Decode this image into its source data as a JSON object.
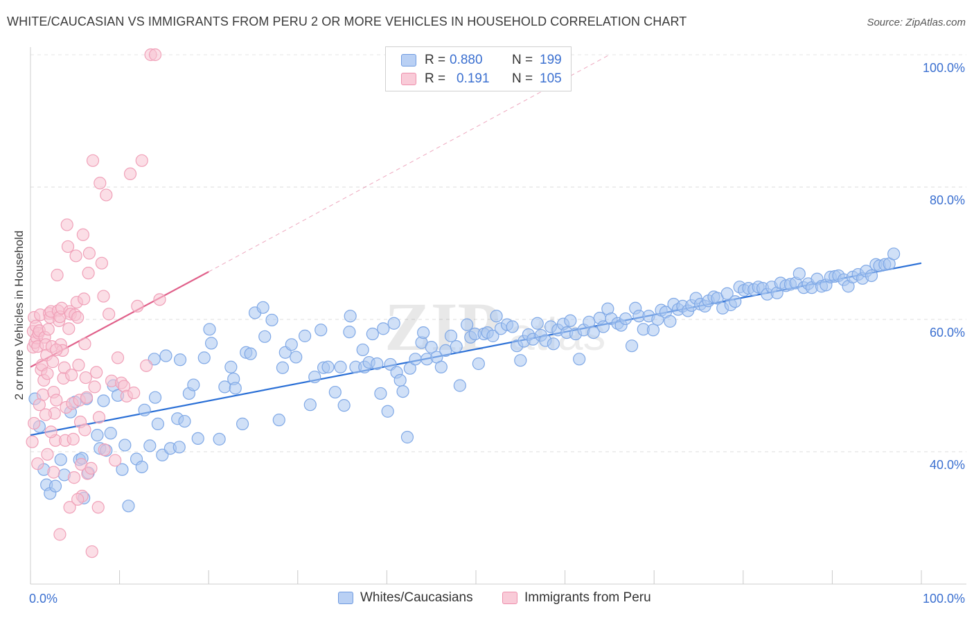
{
  "title": "WHITE/CAUCASIAN VS IMMIGRANTS FROM PERU 2 OR MORE VEHICLES IN HOUSEHOLD CORRELATION CHART",
  "source": "Source: ZipAtlas.com",
  "watermark": {
    "zip": "ZIP",
    "atlas": "atlas"
  },
  "legend": {
    "r_label": "R =",
    "n_label": "N =",
    "entries": [
      {
        "r": "0.880",
        "n": "199"
      },
      {
        "r": "0.191",
        "n": "105"
      }
    ]
  },
  "chart_data": {
    "type": "scatter",
    "title": "WHITE/CAUCASIAN VS IMMIGRANTS FROM PERU 2 OR MORE VEHICLES IN HOUSEHOLD CORRELATION CHART",
    "xlabel": "",
    "ylabel": "2 or more Vehicles in Household",
    "xlim": [
      0,
      100
    ],
    "ylim": [
      20,
      100
    ],
    "x_tick_labels": [
      "0.0%",
      "100.0%"
    ],
    "y_ticks": [
      {
        "value": 40,
        "label": "40.0%"
      },
      {
        "value": 60,
        "label": "60.0%"
      },
      {
        "value": 80,
        "label": "80.0%"
      },
      {
        "value": 100,
        "label": "100.0%"
      }
    ],
    "series": [
      {
        "name": "Whites/Caucasians",
        "color": "#7fa8e6",
        "fill": "#aac6f0",
        "line_color": "#2a6fd6",
        "trend": {
          "x0": 0,
          "y0": 42.5,
          "x1": 100,
          "y1": 68.5
        },
        "points": [
          [
            0.5,
            48
          ],
          [
            1.0,
            43.8
          ],
          [
            1.5,
            37.3
          ],
          [
            1.8,
            35
          ],
          [
            2.2,
            33.7
          ],
          [
            2.8,
            34.8
          ],
          [
            3.4,
            38.8
          ],
          [
            3.8,
            36.5
          ],
          [
            4.5,
            46
          ],
          [
            5.0,
            47.5
          ],
          [
            5.5,
            38.8
          ],
          [
            5.8,
            39
          ],
          [
            6.0,
            33
          ],
          [
            6.3,
            48
          ],
          [
            6.5,
            36.8
          ],
          [
            7.5,
            42.5
          ],
          [
            7.8,
            40.5
          ],
          [
            8.2,
            47.7
          ],
          [
            8.5,
            40.2
          ],
          [
            9.0,
            42.8
          ],
          [
            9.3,
            50
          ],
          [
            9.8,
            48.5
          ],
          [
            10.3,
            37.3
          ],
          [
            10.6,
            41
          ],
          [
            11.0,
            31.8
          ],
          [
            11.9,
            38.9
          ],
          [
            12.5,
            37.7
          ],
          [
            12.8,
            46.3
          ],
          [
            13.4,
            40.9
          ],
          [
            13.9,
            54
          ],
          [
            14.0,
            48.2
          ],
          [
            14.3,
            44.2
          ],
          [
            14.8,
            39.5
          ],
          [
            15.2,
            54.5
          ],
          [
            15.7,
            40.5
          ],
          [
            16.5,
            45
          ],
          [
            16.7,
            40.7
          ],
          [
            16.8,
            53.9
          ],
          [
            17.3,
            44.6
          ],
          [
            17.8,
            48.8
          ],
          [
            18.3,
            50.1
          ],
          [
            18.8,
            42
          ],
          [
            19.5,
            54.2
          ],
          [
            20.1,
            58.5
          ],
          [
            20.3,
            56.4
          ],
          [
            21.2,
            41.9
          ],
          [
            21.8,
            49.8
          ],
          [
            22.5,
            52.8
          ],
          [
            22.8,
            51
          ],
          [
            23.0,
            49.6
          ],
          [
            23.8,
            44.2
          ],
          [
            24.2,
            55
          ],
          [
            24.7,
            54.8
          ],
          [
            25.2,
            61
          ],
          [
            26.1,
            61.8
          ],
          [
            26.3,
            57.4
          ],
          [
            27.1,
            59.9
          ],
          [
            27.9,
            44.8
          ],
          [
            28.3,
            52.7
          ],
          [
            28.6,
            55
          ],
          [
            29.3,
            56.2
          ],
          [
            29.8,
            54.3
          ],
          [
            30.8,
            57.5
          ],
          [
            31.4,
            47.1
          ],
          [
            31.9,
            51.3
          ],
          [
            32.6,
            58.4
          ],
          [
            32.9,
            52.7
          ],
          [
            33.4,
            52.8
          ],
          [
            34.2,
            49
          ],
          [
            34.8,
            52.8
          ],
          [
            35.2,
            47
          ],
          [
            35.8,
            58.1
          ],
          [
            35.9,
            60.5
          ],
          [
            36.5,
            52.8
          ],
          [
            37.3,
            55.4
          ],
          [
            37.5,
            52.8
          ],
          [
            38.0,
            53.5
          ],
          [
            38.4,
            57.8
          ],
          [
            38.9,
            53.3
          ],
          [
            39.3,
            48.8
          ],
          [
            39.6,
            58.6
          ],
          [
            40.1,
            46.1
          ],
          [
            40.4,
            53.2
          ],
          [
            40.8,
            59.4
          ],
          [
            41.1,
            52
          ],
          [
            41.5,
            50.8
          ],
          [
            41.8,
            49.1
          ],
          [
            42.3,
            42.2
          ],
          [
            42.6,
            52.6
          ],
          [
            43.2,
            54
          ],
          [
            43.9,
            56.5
          ],
          [
            44.1,
            58
          ],
          [
            44.5,
            54
          ],
          [
            45.0,
            55.8
          ],
          [
            45.6,
            54.3
          ],
          [
            46.1,
            52.8
          ],
          [
            46.6,
            55.3
          ],
          [
            47.2,
            57.5
          ],
          [
            47.8,
            55.9
          ],
          [
            48.2,
            50
          ],
          [
            49.0,
            59.2
          ],
          [
            49.4,
            57.3
          ],
          [
            49.9,
            57.8
          ],
          [
            50.3,
            53.3
          ],
          [
            50.9,
            57.8
          ],
          [
            51.3,
            58
          ],
          [
            51.9,
            57.5
          ],
          [
            52.3,
            60.5
          ],
          [
            52.8,
            58.6
          ],
          [
            53.5,
            59.2
          ],
          [
            54.1,
            58.9
          ],
          [
            54.6,
            56
          ],
          [
            55.0,
            53.8
          ],
          [
            55.4,
            56.7
          ],
          [
            55.9,
            57.7
          ],
          [
            56.4,
            57
          ],
          [
            56.9,
            59.4
          ],
          [
            57.3,
            57.6
          ],
          [
            57.8,
            56.8
          ],
          [
            58.4,
            58.9
          ],
          [
            58.7,
            56.3
          ],
          [
            59.2,
            58.4
          ],
          [
            59.8,
            59.3
          ],
          [
            60.2,
            58
          ],
          [
            60.6,
            59.8
          ],
          [
            61.2,
            57.8
          ],
          [
            61.6,
            54
          ],
          [
            62.1,
            58.4
          ],
          [
            62.7,
            59.6
          ],
          [
            63.2,
            58
          ],
          [
            63.9,
            60.2
          ],
          [
            64.3,
            58.9
          ],
          [
            64.8,
            61.6
          ],
          [
            65.2,
            60.1
          ],
          [
            65.9,
            59.4
          ],
          [
            66.3,
            59.1
          ],
          [
            66.8,
            60.1
          ],
          [
            67.5,
            56
          ],
          [
            67.9,
            61.7
          ],
          [
            68.3,
            60.5
          ],
          [
            68.8,
            58.5
          ],
          [
            69.4,
            60.5
          ],
          [
            69.9,
            58.4
          ],
          [
            70.4,
            60
          ],
          [
            70.8,
            61.4
          ],
          [
            71.3,
            61.1
          ],
          [
            71.8,
            59.7
          ],
          [
            72.2,
            62.3
          ],
          [
            72.7,
            61.5
          ],
          [
            73.2,
            62
          ],
          [
            73.8,
            61.3
          ],
          [
            74.2,
            62.1
          ],
          [
            74.7,
            63.2
          ],
          [
            75.2,
            62.3
          ],
          [
            75.7,
            62
          ],
          [
            76.1,
            62.8
          ],
          [
            76.7,
            63.4
          ],
          [
            77.1,
            63.2
          ],
          [
            77.7,
            61.7
          ],
          [
            78.2,
            63.9
          ],
          [
            78.6,
            62.2
          ],
          [
            79.1,
            62.7
          ],
          [
            79.6,
            64.9
          ],
          [
            80.1,
            64.4
          ],
          [
            80.6,
            64.7
          ],
          [
            81.2,
            64.5
          ],
          [
            81.7,
            64.9
          ],
          [
            82.2,
            64.7
          ],
          [
            82.7,
            63.8
          ],
          [
            83.2,
            64.9
          ],
          [
            83.8,
            64
          ],
          [
            84.2,
            65.5
          ],
          [
            84.8,
            65.1
          ],
          [
            85.3,
            65.3
          ],
          [
            85.9,
            65.5
          ],
          [
            86.3,
            66.9
          ],
          [
            86.8,
            64.8
          ],
          [
            87.3,
            65.4
          ],
          [
            87.7,
            64.8
          ],
          [
            88.3,
            66.1
          ],
          [
            88.8,
            65
          ],
          [
            89.3,
            65.2
          ],
          [
            89.8,
            66.4
          ],
          [
            90.3,
            66.5
          ],
          [
            90.7,
            66.6
          ],
          [
            91.3,
            66
          ],
          [
            91.8,
            65
          ],
          [
            92.3,
            66.4
          ],
          [
            92.9,
            66.8
          ],
          [
            93.4,
            66.2
          ],
          [
            93.8,
            67.3
          ],
          [
            94.4,
            66.6
          ],
          [
            94.9,
            68.3
          ],
          [
            95.3,
            68.1
          ],
          [
            95.9,
            68.3
          ],
          [
            96.4,
            68.4
          ],
          [
            96.9,
            69.9
          ]
        ]
      },
      {
        "name": "Immigrants from Peru",
        "color": "#f0a0b8",
        "fill": "#f7c3d2",
        "line_color": "#e0608a",
        "trend": {
          "x0": 0,
          "y0": 52.8,
          "x1": 20,
          "y1": 67.2
        },
        "trend_dashed": {
          "x0": 20,
          "y0": 67.2,
          "x1": 65,
          "y1": 100
        },
        "points": [
          [
            0.2,
            41.5
          ],
          [
            0.3,
            55.8
          ],
          [
            0.3,
            58.2
          ],
          [
            0.4,
            60.3
          ],
          [
            0.5,
            56.5
          ],
          [
            0.6,
            59
          ],
          [
            0.7,
            57.2
          ],
          [
            0.8,
            55.9
          ],
          [
            0.9,
            57.9
          ],
          [
            1.0,
            58.3
          ],
          [
            1.1,
            60.7
          ],
          [
            1.2,
            52.4
          ],
          [
            1.3,
            53.1
          ],
          [
            1.4,
            48.6
          ],
          [
            1.5,
            50.8
          ],
          [
            1.6,
            57.3
          ],
          [
            1.7,
            56.2
          ],
          [
            1.8,
            54.6
          ],
          [
            1.9,
            51.8
          ],
          [
            2.0,
            58.5
          ],
          [
            2.1,
            60.9
          ],
          [
            2.2,
            60.3
          ],
          [
            2.3,
            61.2
          ],
          [
            2.4,
            55.9
          ],
          [
            2.5,
            53.6
          ],
          [
            2.6,
            49
          ],
          [
            2.7,
            45.8
          ],
          [
            2.8,
            41.7
          ],
          [
            2.9,
            47.8
          ],
          [
            3.0,
            66.7
          ],
          [
            3.1,
            61.3
          ],
          [
            3.2,
            59.8
          ],
          [
            3.3,
            60.4
          ],
          [
            3.4,
            56.2
          ],
          [
            3.5,
            61.7
          ],
          [
            3.6,
            55.3
          ],
          [
            3.7,
            51.1
          ],
          [
            3.8,
            52.7
          ],
          [
            3.9,
            41.7
          ],
          [
            4.0,
            46.7
          ],
          [
            4.1,
            74.3
          ],
          [
            4.2,
            71
          ],
          [
            4.3,
            58.6
          ],
          [
            4.4,
            61.2
          ],
          [
            4.5,
            60.8
          ],
          [
            4.6,
            51.6
          ],
          [
            4.7,
            47.3
          ],
          [
            4.8,
            41.9
          ],
          [
            4.9,
            36.1
          ],
          [
            5.0,
            60.7
          ],
          [
            5.1,
            69.6
          ],
          [
            5.2,
            62.6
          ],
          [
            5.3,
            60.3
          ],
          [
            5.4,
            53.1
          ],
          [
            5.5,
            47.8
          ],
          [
            5.6,
            44.5
          ],
          [
            5.7,
            38.1
          ],
          [
            5.8,
            33.3
          ],
          [
            5.9,
            72.8
          ],
          [
            6.0,
            63.1
          ],
          [
            6.1,
            56.3
          ],
          [
            6.2,
            51.2
          ],
          [
            6.3,
            48.2
          ],
          [
            6.4,
            36.7
          ],
          [
            6.5,
            67
          ],
          [
            6.6,
            70
          ],
          [
            6.8,
            37.5
          ],
          [
            7.0,
            84
          ],
          [
            7.2,
            49.8
          ],
          [
            7.4,
            52
          ],
          [
            7.6,
            31.6
          ],
          [
            7.8,
            80.6
          ],
          [
            8.0,
            68.5
          ],
          [
            8.2,
            63.5
          ],
          [
            8.5,
            78.8
          ],
          [
            8.8,
            60.8
          ],
          [
            9.1,
            50.7
          ],
          [
            9.5,
            38.7
          ],
          [
            9.8,
            54.2
          ],
          [
            10.2,
            50.4
          ],
          [
            10.5,
            49.9
          ],
          [
            10.8,
            48.4
          ],
          [
            11.2,
            82
          ],
          [
            11.6,
            48.9
          ],
          [
            12.0,
            62
          ],
          [
            12.5,
            84
          ],
          [
            13.0,
            53
          ],
          [
            13.5,
            100
          ],
          [
            14.0,
            100
          ],
          [
            14.5,
            63
          ],
          [
            0.8,
            38.2
          ],
          [
            1.9,
            39.6
          ],
          [
            2.6,
            36.9
          ],
          [
            3.3,
            27.5
          ],
          [
            4.4,
            31.6
          ],
          [
            5.3,
            32.8
          ],
          [
            6.1,
            43.3
          ],
          [
            6.9,
            24.9
          ],
          [
            7.7,
            45.2
          ],
          [
            8.3,
            40.3
          ],
          [
            0.4,
            44.3
          ],
          [
            1.0,
            47.1
          ],
          [
            1.7,
            45.6
          ],
          [
            2.3,
            43
          ],
          [
            2.9,
            55.4
          ]
        ]
      }
    ]
  }
}
